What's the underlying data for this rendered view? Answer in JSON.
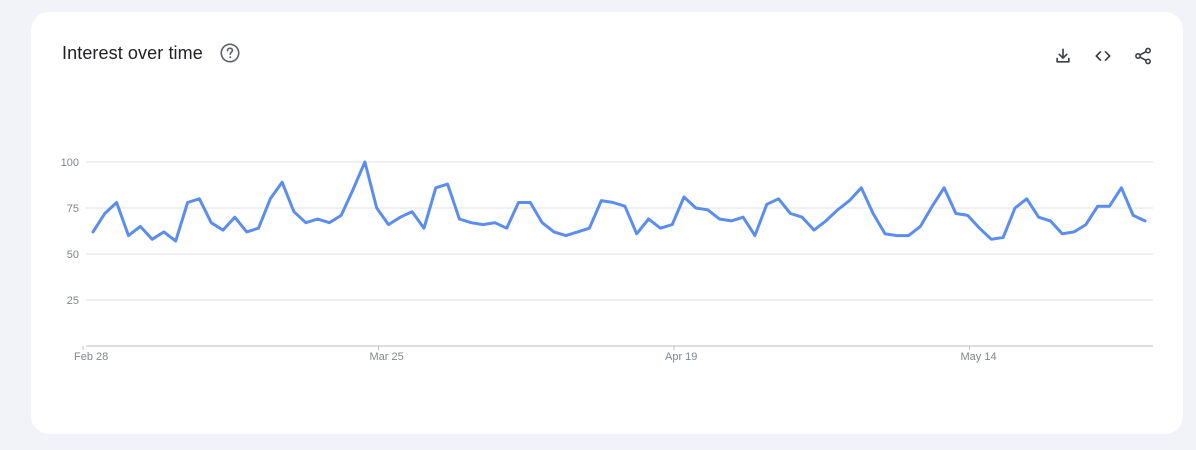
{
  "header": {
    "title": "Interest over time"
  },
  "icons": {
    "help": "help-circle-icon",
    "download": "download-icon",
    "embed": "embed-code-icon",
    "share": "share-icon"
  },
  "colors": {
    "line": "#5b8def",
    "grid": "#e0e0e0",
    "axis": "#bdbdbd",
    "tick_text": "#80868b"
  },
  "chart_data": {
    "type": "line",
    "title": "Interest over time",
    "xlabel": "",
    "ylabel": "",
    "ylim": [
      0,
      100
    ],
    "yticks": [
      25,
      50,
      75,
      100
    ],
    "x_tick_labels": [
      {
        "label": "Feb 28",
        "index": 0
      },
      {
        "label": "Mar 25",
        "index": 25
      },
      {
        "label": "Apr 19",
        "index": 50
      },
      {
        "label": "May 14",
        "index": 75
      }
    ],
    "grid": true,
    "series": [
      {
        "values": [
          62,
          72,
          78,
          60,
          65,
          58,
          62,
          57,
          78,
          80,
          67,
          63,
          70,
          62,
          64,
          80,
          89,
          73,
          67,
          69,
          67,
          71,
          85,
          100,
          75,
          66,
          70,
          73,
          64,
          86,
          88,
          69,
          67,
          66,
          67,
          64,
          78,
          78,
          67,
          62,
          60,
          62,
          64,
          79,
          78,
          76,
          61,
          69,
          64,
          66,
          81,
          75,
          74,
          69,
          68,
          70,
          60,
          77,
          80,
          72,
          70,
          63,
          68,
          74,
          79,
          86,
          72,
          61,
          60,
          60,
          65,
          76,
          86,
          72,
          71,
          64,
          58,
          59,
          75,
          80,
          70,
          68,
          61,
          62,
          66,
          76,
          76,
          86,
          71,
          68
        ]
      }
    ]
  }
}
